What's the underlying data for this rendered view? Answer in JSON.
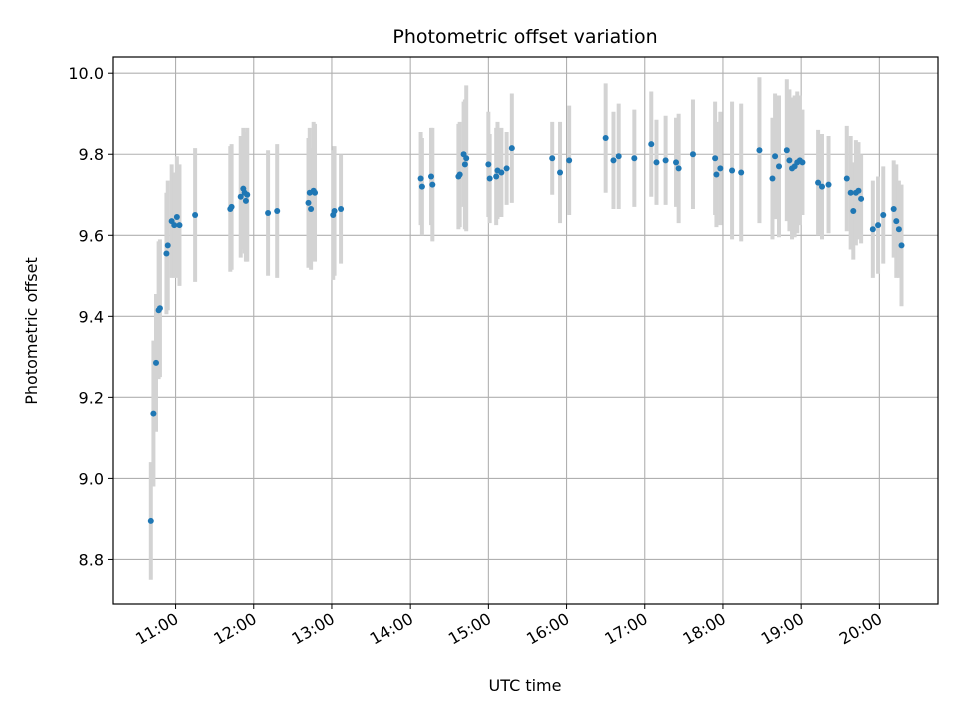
{
  "chart_data": {
    "type": "scatter",
    "title": "Photometric offset variation",
    "xlabel": "UTC time",
    "ylabel": "Photometric offset",
    "x_tick_labels": [
      "11:00",
      "12:00",
      "13:00",
      "14:00",
      "15:00",
      "16:00",
      "17:00",
      "18:00",
      "19:00",
      "20:00"
    ],
    "y_tick_labels": [
      "8.8",
      "9.0",
      "9.2",
      "9.4",
      "9.6",
      "9.8",
      "10.0"
    ],
    "xlim": [
      "10:12",
      "20:45"
    ],
    "ylim": [
      8.69,
      10.04
    ],
    "grid": true,
    "colors": {
      "point": "#1f77b4",
      "errorbar": "#d3d3d3",
      "grid": "#b0b0b0"
    },
    "points": [
      {
        "t": "10:41",
        "y": 8.895,
        "err": 0.145
      },
      {
        "t": "10:43",
        "y": 9.16,
        "err": 0.18
      },
      {
        "t": "10:45",
        "y": 9.285,
        "err": 0.17
      },
      {
        "t": "10:47",
        "y": 9.415,
        "err": 0.17
      },
      {
        "t": "10:48",
        "y": 9.42,
        "err": 0.17
      },
      {
        "t": "10:53",
        "y": 9.555,
        "err": 0.15
      },
      {
        "t": "10:54",
        "y": 9.575,
        "err": 0.16
      },
      {
        "t": "10:57",
        "y": 9.635,
        "err": 0.14
      },
      {
        "t": "10:59",
        "y": 9.625,
        "err": 0.13
      },
      {
        "t": "11:01",
        "y": 9.645,
        "err": 0.15
      },
      {
        "t": "11:03",
        "y": 9.625,
        "err": 0.15
      },
      {
        "t": "11:15",
        "y": 9.65,
        "err": 0.165
      },
      {
        "t": "11:42",
        "y": 9.665,
        "err": 0.155
      },
      {
        "t": "11:43",
        "y": 9.67,
        "err": 0.155
      },
      {
        "t": "11:50",
        "y": 9.695,
        "err": 0.15
      },
      {
        "t": "11:52",
        "y": 9.715,
        "err": 0.15
      },
      {
        "t": "11:53",
        "y": 9.705,
        "err": 0.15
      },
      {
        "t": "11:54",
        "y": 9.685,
        "err": 0.15
      },
      {
        "t": "11:55",
        "y": 9.7,
        "err": 0.165
      },
      {
        "t": "12:11",
        "y": 9.655,
        "err": 0.155
      },
      {
        "t": "12:18",
        "y": 9.66,
        "err": 0.165
      },
      {
        "t": "12:42",
        "y": 9.68,
        "err": 0.16
      },
      {
        "t": "12:43",
        "y": 9.705,
        "err": 0.16
      },
      {
        "t": "12:44",
        "y": 9.665,
        "err": 0.15
      },
      {
        "t": "12:46",
        "y": 9.71,
        "err": 0.17
      },
      {
        "t": "12:47",
        "y": 9.705,
        "err": 0.17
      },
      {
        "t": "13:01",
        "y": 9.65,
        "err": 0.16
      },
      {
        "t": "13:02",
        "y": 9.66,
        "err": 0.16
      },
      {
        "t": "13:07",
        "y": 9.665,
        "err": 0.135
      },
      {
        "t": "14:08",
        "y": 9.74,
        "err": 0.115
      },
      {
        "t": "14:09",
        "y": 9.72,
        "err": 0.12
      },
      {
        "t": "14:16",
        "y": 9.745,
        "err": 0.12
      },
      {
        "t": "14:17",
        "y": 9.725,
        "err": 0.14
      },
      {
        "t": "14:37",
        "y": 9.745,
        "err": 0.13
      },
      {
        "t": "14:38",
        "y": 9.75,
        "err": 0.13
      },
      {
        "t": "14:41",
        "y": 9.8,
        "err": 0.13
      },
      {
        "t": "14:42",
        "y": 9.775,
        "err": 0.16
      },
      {
        "t": "14:43",
        "y": 9.79,
        "err": 0.18
      },
      {
        "t": "15:00",
        "y": 9.775,
        "err": 0.13
      },
      {
        "t": "15:01",
        "y": 9.74,
        "err": 0.11
      },
      {
        "t": "15:06",
        "y": 9.745,
        "err": 0.12
      },
      {
        "t": "15:07",
        "y": 9.76,
        "err": 0.12
      },
      {
        "t": "15:10",
        "y": 9.755,
        "err": 0.11
      },
      {
        "t": "15:14",
        "y": 9.765,
        "err": 0.09
      },
      {
        "t": "15:18",
        "y": 9.815,
        "err": 0.135
      },
      {
        "t": "15:49",
        "y": 9.79,
        "err": 0.09
      },
      {
        "t": "15:55",
        "y": 9.755,
        "err": 0.125
      },
      {
        "t": "16:02",
        "y": 9.785,
        "err": 0.135
      },
      {
        "t": "16:30",
        "y": 9.84,
        "err": 0.135
      },
      {
        "t": "16:36",
        "y": 9.785,
        "err": 0.12
      },
      {
        "t": "16:40",
        "y": 9.795,
        "err": 0.13
      },
      {
        "t": "16:52",
        "y": 9.79,
        "err": 0.12
      },
      {
        "t": "17:05",
        "y": 9.825,
        "err": 0.13
      },
      {
        "t": "17:09",
        "y": 9.78,
        "err": 0.105
      },
      {
        "t": "17:16",
        "y": 9.785,
        "err": 0.11
      },
      {
        "t": "17:24",
        "y": 9.78,
        "err": 0.11
      },
      {
        "t": "17:26",
        "y": 9.765,
        "err": 0.135
      },
      {
        "t": "17:37",
        "y": 9.8,
        "err": 0.135
      },
      {
        "t": "17:54",
        "y": 9.79,
        "err": 0.14
      },
      {
        "t": "17:55",
        "y": 9.75,
        "err": 0.13
      },
      {
        "t": "17:58",
        "y": 9.765,
        "err": 0.14
      },
      {
        "t": "18:07",
        "y": 9.76,
        "err": 0.17
      },
      {
        "t": "18:14",
        "y": 9.755,
        "err": 0.17
      },
      {
        "t": "18:28",
        "y": 9.81,
        "err": 0.18
      },
      {
        "t": "18:38",
        "y": 9.74,
        "err": 0.15
      },
      {
        "t": "18:40",
        "y": 9.795,
        "err": 0.155
      },
      {
        "t": "18:43",
        "y": 9.77,
        "err": 0.175
      },
      {
        "t": "18:49",
        "y": 9.81,
        "err": 0.175
      },
      {
        "t": "18:51",
        "y": 9.785,
        "err": 0.175
      },
      {
        "t": "18:53",
        "y": 9.765,
        "err": 0.175
      },
      {
        "t": "18:55",
        "y": 9.77,
        "err": 0.175
      },
      {
        "t": "18:57",
        "y": 9.78,
        "err": 0.175
      },
      {
        "t": "18:59",
        "y": 9.785,
        "err": 0.16
      },
      {
        "t": "19:01",
        "y": 9.78,
        "err": 0.13
      },
      {
        "t": "19:13",
        "y": 9.73,
        "err": 0.13
      },
      {
        "t": "19:16",
        "y": 9.72,
        "err": 0.13
      },
      {
        "t": "19:21",
        "y": 9.725,
        "err": 0.12
      },
      {
        "t": "19:35",
        "y": 9.74,
        "err": 0.13
      },
      {
        "t": "19:38",
        "y": 9.705,
        "err": 0.14
      },
      {
        "t": "19:40",
        "y": 9.66,
        "err": 0.12
      },
      {
        "t": "19:42",
        "y": 9.705,
        "err": 0.13
      },
      {
        "t": "19:44",
        "y": 9.71,
        "err": 0.12
      },
      {
        "t": "19:46",
        "y": 9.69,
        "err": 0.11
      },
      {
        "t": "19:55",
        "y": 9.615,
        "err": 0.12
      },
      {
        "t": "19:59",
        "y": 9.625,
        "err": 0.12
      },
      {
        "t": "20:03",
        "y": 9.65,
        "err": 0.12
      },
      {
        "t": "20:11",
        "y": 9.665,
        "err": 0.12
      },
      {
        "t": "20:13",
        "y": 9.635,
        "err": 0.14
      },
      {
        "t": "20:15",
        "y": 9.615,
        "err": 0.12
      },
      {
        "t": "20:17",
        "y": 9.575,
        "err": 0.15
      }
    ]
  }
}
